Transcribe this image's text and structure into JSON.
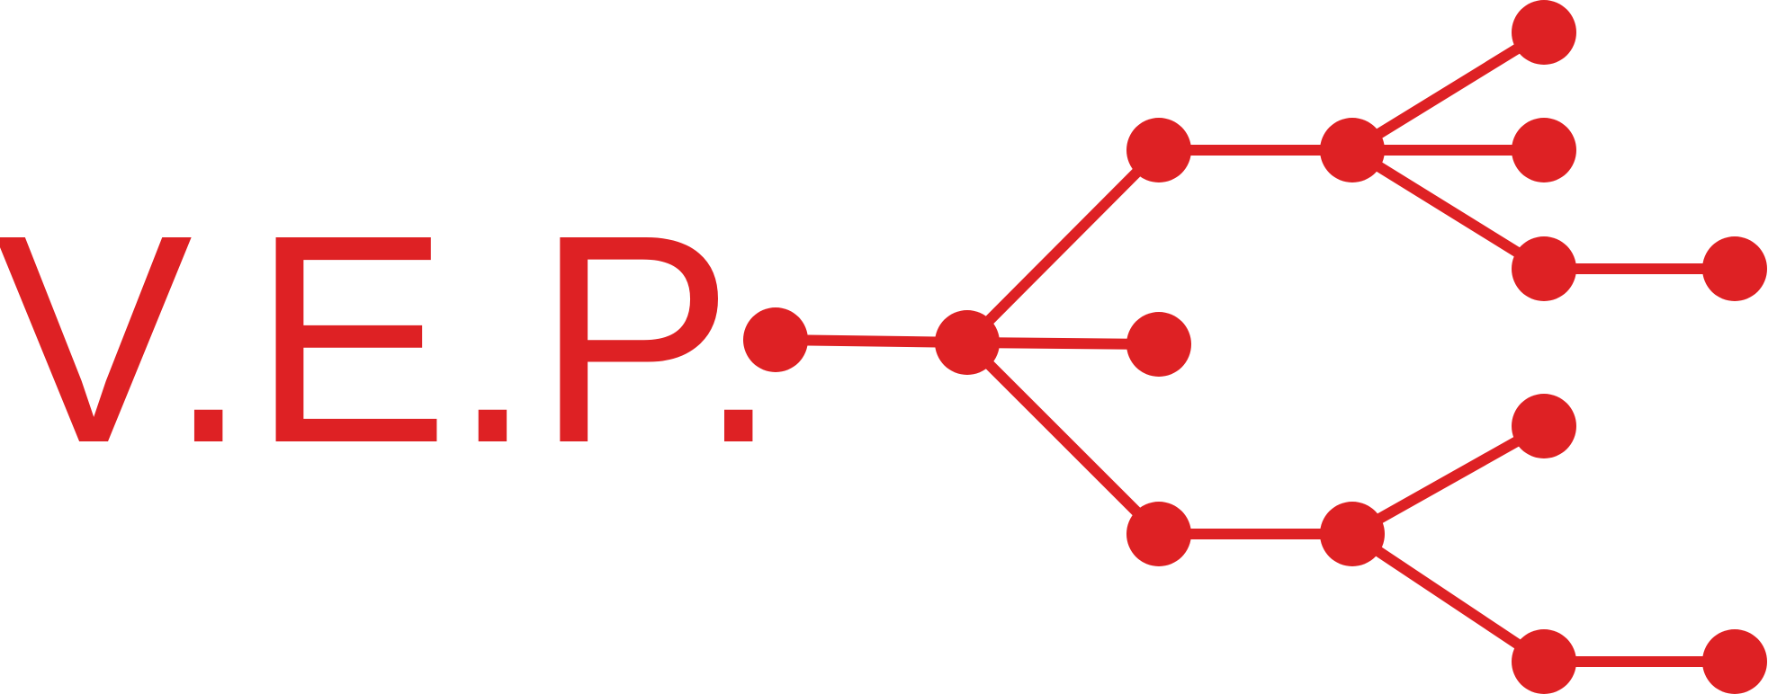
{
  "logo": {
    "text": "V.E.P.",
    "color": "#de2124"
  }
}
